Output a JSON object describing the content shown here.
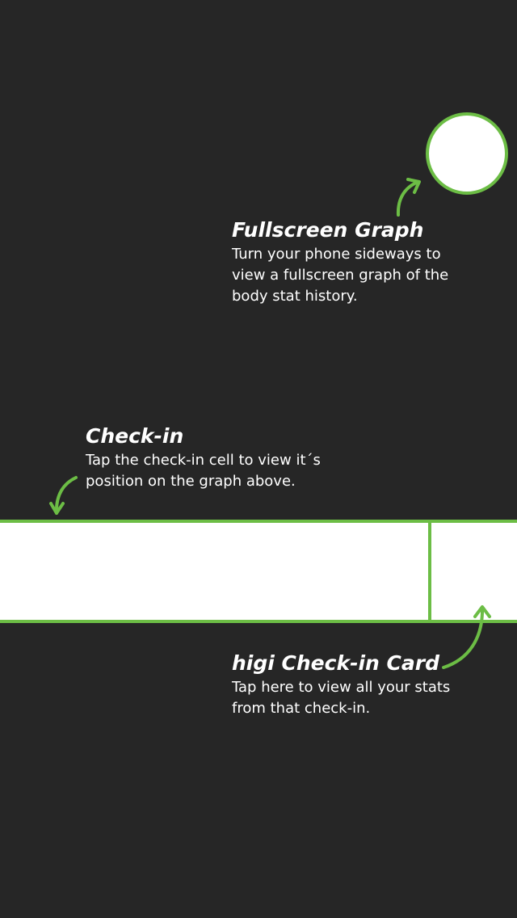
{
  "tips": {
    "fullscreen": {
      "title": "Fullscreen Graph",
      "lines": [
        "Turn your phone sideways to",
        "view a fullscreen graph of the",
        "body stat history."
      ]
    },
    "checkin": {
      "title": "Check-in",
      "lines": [
        "Tap the check-in cell to view it´s",
        "position on the graph above."
      ]
    },
    "card": {
      "title": "higi Check-in Card",
      "lines": [
        "Tap here to view all your stats",
        "from that check-in."
      ]
    }
  },
  "colors": {
    "background": "#262626",
    "accent": "#6cbd45",
    "highlight_fill": "#ffffff",
    "text": "#ffffff"
  }
}
